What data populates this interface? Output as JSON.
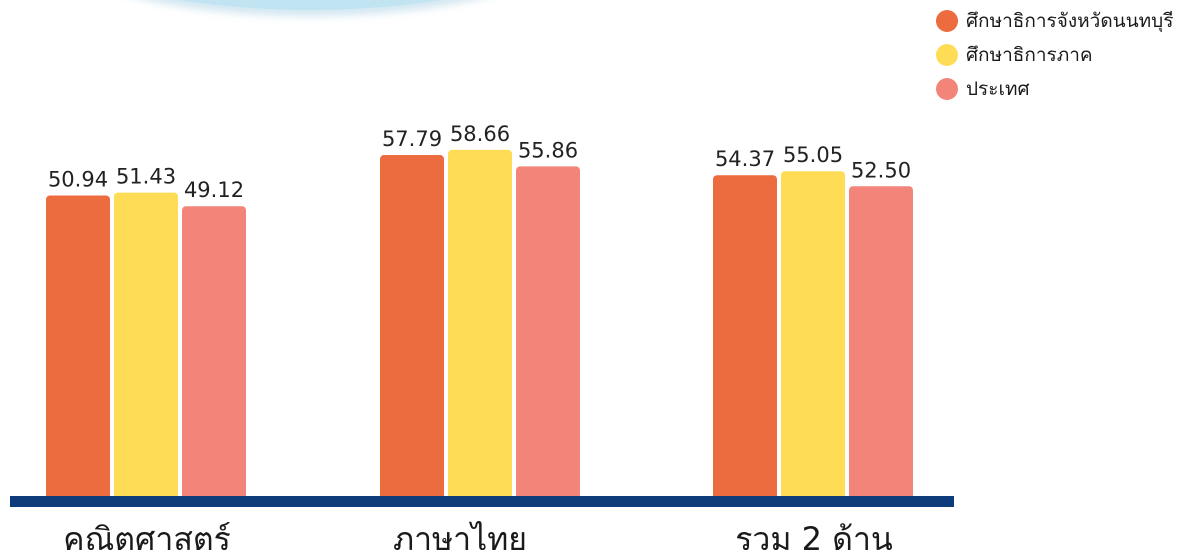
{
  "chart_data": {
    "type": "bar",
    "categories": [
      "คณิตศาสตร์",
      "ภาษาไทย",
      "รวม 2 ด้าน"
    ],
    "series": [
      {
        "name": "ศึกษาธิการจังหวัดนนทบุรี",
        "color": "#ec6b3f",
        "values": [
          50.94,
          57.79,
          54.37
        ],
        "labels": [
          "50.94",
          "57.79",
          "54.37"
        ]
      },
      {
        "name": "ศึกษาธิการภาค",
        "color": "#fedc55",
        "values": [
          51.43,
          58.66,
          55.05
        ],
        "labels": [
          "51.43",
          "58.66",
          "55.05"
        ]
      },
      {
        "name": "ประเทศ",
        "color": "#f2847a",
        "values": [
          49.12,
          55.86,
          52.5
        ],
        "labels": [
          "49.12",
          "55.86",
          "52.50"
        ]
      }
    ],
    "legend_position": "top-right",
    "grid": false,
    "baseline_color": "#0e3b7a"
  }
}
